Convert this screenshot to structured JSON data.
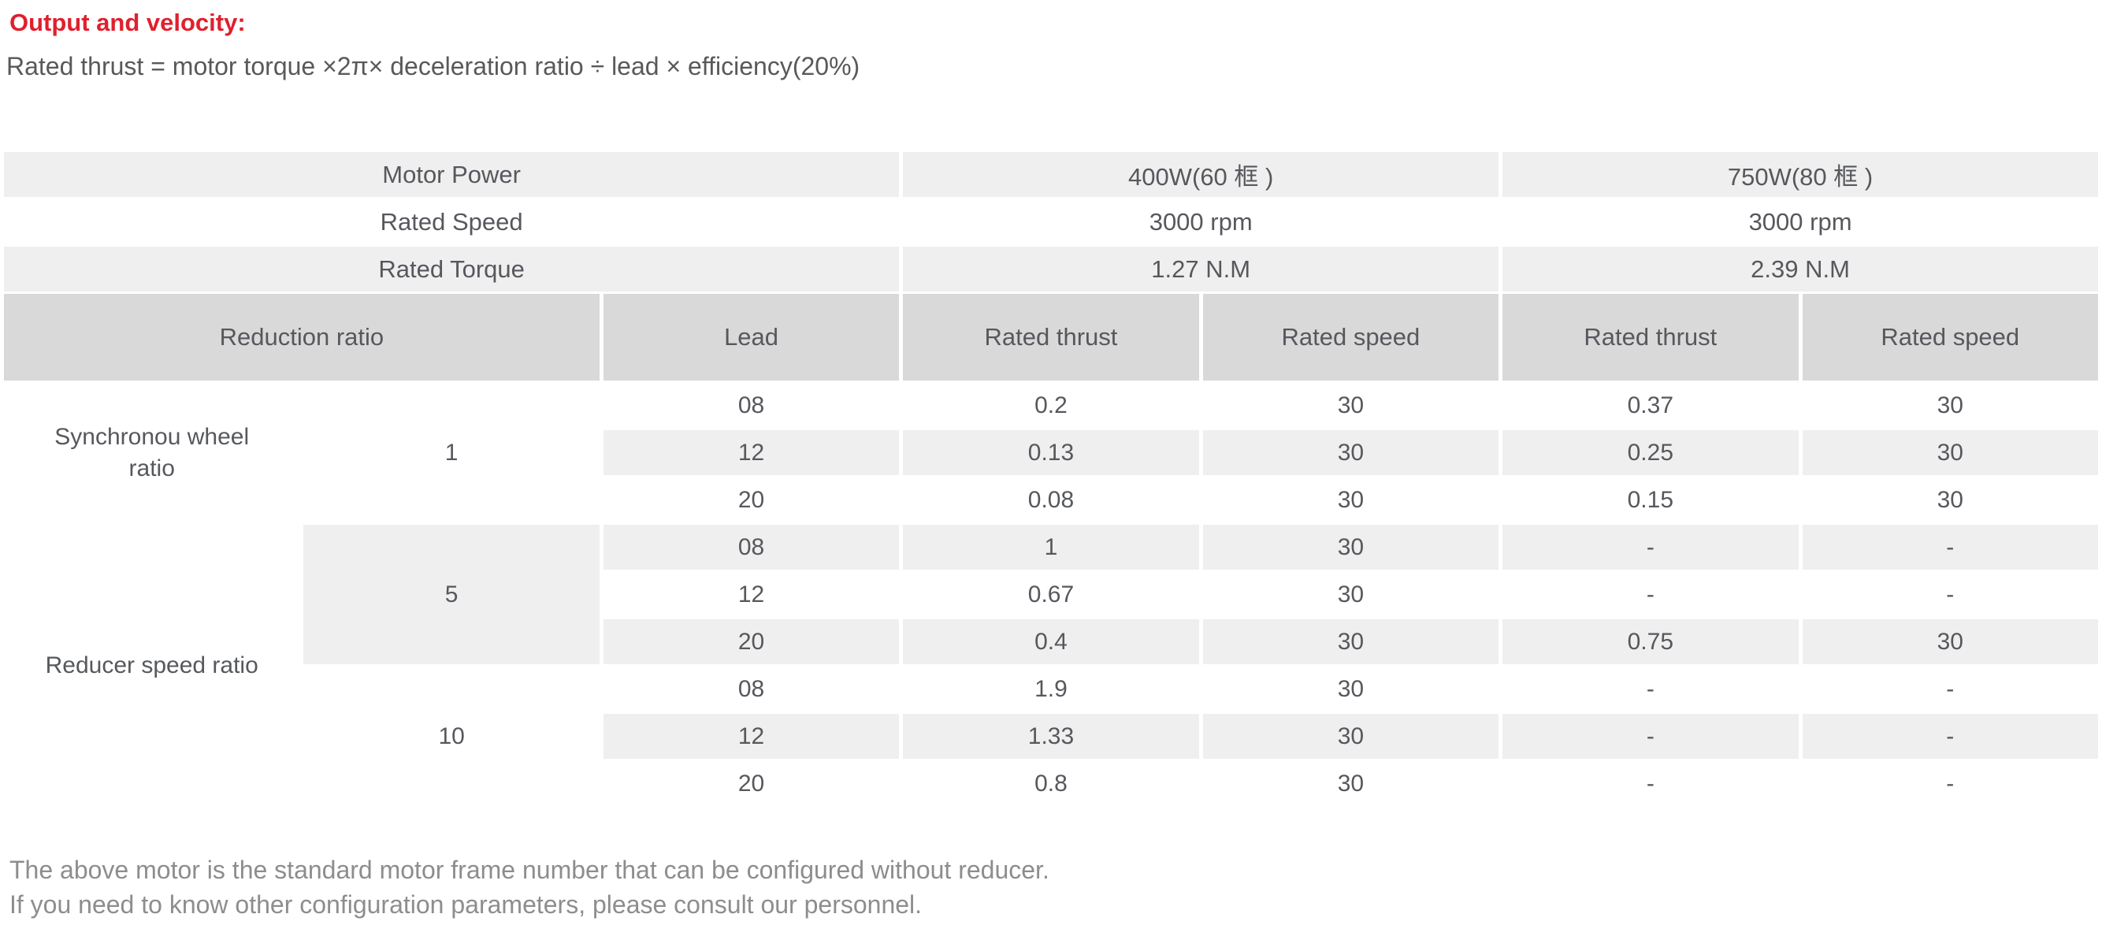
{
  "page": {
    "title": "Output and velocity:",
    "formula": "Rated thrust = motor torque ×2π× deceleration ratio ÷ lead × efficiency(20%)",
    "footer_line1": "The above motor is the standard motor frame number that can be configured without reducer.",
    "footer_line2": "If you need to know other configuration parameters, please consult our personnel."
  },
  "colors": {
    "accent_red": "#e0202e",
    "row_gray": "#efefef",
    "header_gray": "#d9d9d9",
    "text": "#56585d",
    "footer_text": "#8d8d8d"
  },
  "table": {
    "motor_rows": [
      {
        "label": "Motor Power",
        "w400": "400W(60 框 )",
        "w750": "750W(80 框 )"
      },
      {
        "label": "Rated Speed",
        "w400": "3000 rpm",
        "w750": "3000 rpm"
      },
      {
        "label": "Rated Torque",
        "w400": "1.27 N.M",
        "w750": "2.39 N.M"
      }
    ],
    "header": {
      "reduction_ratio": "Reduction ratio",
      "lead": "Lead",
      "value_cols": [
        "Rated thrust",
        "Rated speed",
        "Rated thrust",
        "Rated speed"
      ]
    },
    "row_groups": [
      {
        "label": "Synchronou wheel ratio",
        "ratio": "1",
        "rows": [
          {
            "lead": "08",
            "values": [
              "0.2",
              "30",
              "0.37",
              "30"
            ]
          },
          {
            "lead": "12",
            "values": [
              "0.13",
              "30",
              "0.25",
              "30"
            ]
          },
          {
            "lead": "20",
            "values": [
              "0.08",
              "30",
              "0.15",
              "30"
            ]
          }
        ]
      },
      {
        "label": "Reducer speed ratio",
        "ratio": "5",
        "rows": [
          {
            "lead": "08",
            "values": [
              "1",
              "30",
              "-",
              "-"
            ]
          },
          {
            "lead": "12",
            "values": [
              "0.67",
              "30",
              "-",
              "-"
            ]
          },
          {
            "lead": "20",
            "values": [
              "0.4",
              "30",
              "0.75",
              "30"
            ]
          }
        ]
      },
      {
        "label": "",
        "ratio": "10",
        "rows": [
          {
            "lead": "08",
            "values": [
              "1.9",
              "30",
              "-",
              "-"
            ]
          },
          {
            "lead": "12",
            "values": [
              "1.33",
              "30",
              "-",
              "-"
            ]
          },
          {
            "lead": "20",
            "values": [
              "0.8",
              "30",
              "-",
              "-"
            ]
          }
        ]
      }
    ]
  }
}
